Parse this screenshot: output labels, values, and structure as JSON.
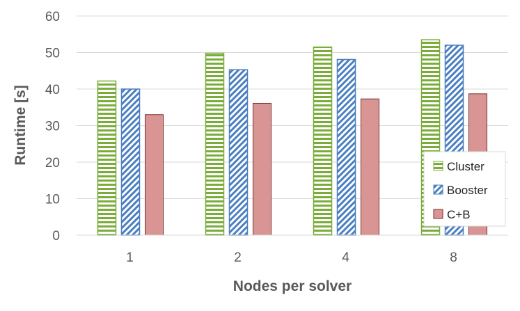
{
  "chart_data": {
    "type": "bar",
    "title": "",
    "xlabel": "Nodes per solver",
    "ylabel": "Runtime [s]",
    "ylim": [
      0,
      60
    ],
    "yticks": [
      0,
      10,
      20,
      30,
      40,
      50,
      60
    ],
    "grid": true,
    "legend_position": "right",
    "categories": [
      "1",
      "2",
      "4",
      "8"
    ],
    "series": [
      {
        "name": "Cluster",
        "values": [
          42.2,
          49.8,
          51.5,
          53.5
        ],
        "color": "#7aac3a",
        "pattern": "horizontal-stripes"
      },
      {
        "name": "Booster",
        "values": [
          40.0,
          45.3,
          48.1,
          52.0
        ],
        "color": "#4a7fc1",
        "pattern": "diagonal-stripes"
      },
      {
        "name": "C+B",
        "values": [
          33.0,
          36.1,
          37.3,
          38.7
        ],
        "color": "#d99594",
        "pattern": "solid"
      }
    ]
  }
}
